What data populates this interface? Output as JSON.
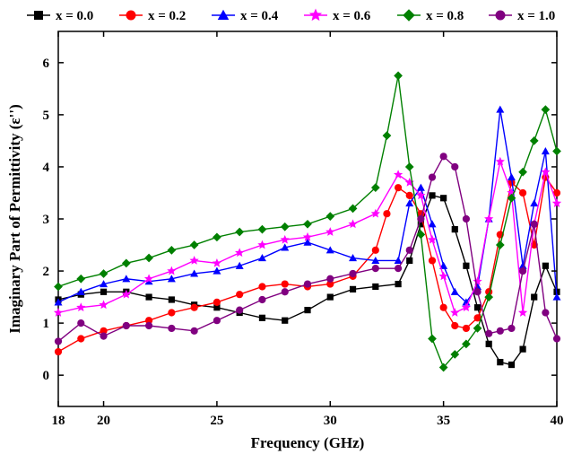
{
  "chart_data": {
    "type": "line",
    "xlabel": "Frequency (GHz)",
    "ylabel": "Imaginary Part of Permittivity (ε'')",
    "xlim": [
      18,
      40
    ],
    "ylim": [
      -0.6,
      6.6
    ],
    "xticks": [
      18,
      20,
      25,
      30,
      35,
      40
    ],
    "yticks": [
      0,
      1,
      2,
      3,
      4,
      5,
      6
    ],
    "legend_position": "top",
    "grid": false,
    "series": [
      {
        "name": "x = 0.0",
        "color": "#000000",
        "marker": "square",
        "points": [
          [
            18,
            1.45
          ],
          [
            19,
            1.55
          ],
          [
            20,
            1.6
          ],
          [
            21,
            1.6
          ],
          [
            22,
            1.5
          ],
          [
            23,
            1.45
          ],
          [
            24,
            1.35
          ],
          [
            25,
            1.3
          ],
          [
            26,
            1.2
          ],
          [
            27,
            1.1
          ],
          [
            28,
            1.05
          ],
          [
            29,
            1.25
          ],
          [
            30,
            1.5
          ],
          [
            31,
            1.65
          ],
          [
            32,
            1.7
          ],
          [
            33,
            1.75
          ],
          [
            33.5,
            2.2
          ],
          [
            34,
            2.9
          ],
          [
            34.5,
            3.45
          ],
          [
            35,
            3.4
          ],
          [
            35.5,
            2.8
          ],
          [
            36,
            2.1
          ],
          [
            36.5,
            1.3
          ],
          [
            37,
            0.6
          ],
          [
            37.5,
            0.25
          ],
          [
            38,
            0.2
          ],
          [
            38.5,
            0.5
          ],
          [
            39,
            1.5
          ],
          [
            39.5,
            2.1
          ],
          [
            40,
            1.6
          ]
        ]
      },
      {
        "name": "x = 0.2",
        "color": "#ff0000",
        "marker": "circle",
        "points": [
          [
            18,
            0.45
          ],
          [
            19,
            0.7
          ],
          [
            20,
            0.85
          ],
          [
            21,
            0.95
          ],
          [
            22,
            1.05
          ],
          [
            23,
            1.2
          ],
          [
            24,
            1.3
          ],
          [
            25,
            1.4
          ],
          [
            26,
            1.55
          ],
          [
            27,
            1.7
          ],
          [
            28,
            1.75
          ],
          [
            29,
            1.7
          ],
          [
            30,
            1.75
          ],
          [
            31,
            1.9
          ],
          [
            32,
            2.4
          ],
          [
            32.5,
            3.1
          ],
          [
            33,
            3.6
          ],
          [
            33.5,
            3.45
          ],
          [
            34,
            3.1
          ],
          [
            34.5,
            2.2
          ],
          [
            35,
            1.3
          ],
          [
            35.5,
            0.95
          ],
          [
            36,
            0.9
          ],
          [
            36.5,
            1.1
          ],
          [
            37,
            1.6
          ],
          [
            37.5,
            2.7
          ],
          [
            38,
            3.7
          ],
          [
            38.5,
            3.5
          ],
          [
            39,
            2.5
          ],
          [
            39.5,
            3.8
          ],
          [
            40,
            3.5
          ]
        ]
      },
      {
        "name": "x = 0.4",
        "color": "#0000ff",
        "marker": "triangle",
        "points": [
          [
            18,
            1.4
          ],
          [
            19,
            1.6
          ],
          [
            20,
            1.75
          ],
          [
            21,
            1.85
          ],
          [
            22,
            1.8
          ],
          [
            23,
            1.85
          ],
          [
            24,
            1.95
          ],
          [
            25,
            2.0
          ],
          [
            26,
            2.1
          ],
          [
            27,
            2.25
          ],
          [
            28,
            2.45
          ],
          [
            29,
            2.55
          ],
          [
            30,
            2.4
          ],
          [
            31,
            2.25
          ],
          [
            32,
            2.2
          ],
          [
            33,
            2.2
          ],
          [
            33.5,
            3.3
          ],
          [
            34,
            3.6
          ],
          [
            34.5,
            2.9
          ],
          [
            35,
            2.1
          ],
          [
            35.5,
            1.6
          ],
          [
            36,
            1.4
          ],
          [
            36.5,
            1.7
          ],
          [
            37,
            3.0
          ],
          [
            37.5,
            5.1
          ],
          [
            38,
            3.8
          ],
          [
            38.5,
            2.1
          ],
          [
            39,
            3.3
          ],
          [
            39.5,
            4.3
          ],
          [
            40,
            1.5
          ]
        ]
      },
      {
        "name": "x = 0.6",
        "color": "#ff00ff",
        "marker": "star",
        "points": [
          [
            18,
            1.2
          ],
          [
            19,
            1.3
          ],
          [
            20,
            1.35
          ],
          [
            21,
            1.55
          ],
          [
            22,
            1.85
          ],
          [
            23,
            2.0
          ],
          [
            24,
            2.2
          ],
          [
            25,
            2.15
          ],
          [
            26,
            2.35
          ],
          [
            27,
            2.5
          ],
          [
            28,
            2.6
          ],
          [
            29,
            2.65
          ],
          [
            30,
            2.75
          ],
          [
            31,
            2.9
          ],
          [
            32,
            3.1
          ],
          [
            33,
            3.85
          ],
          [
            33.5,
            3.7
          ],
          [
            34,
            3.45
          ],
          [
            34.5,
            2.6
          ],
          [
            35,
            1.9
          ],
          [
            35.5,
            1.2
          ],
          [
            36,
            1.3
          ],
          [
            36.5,
            1.8
          ],
          [
            37,
            3.0
          ],
          [
            37.5,
            4.1
          ],
          [
            38,
            3.5
          ],
          [
            38.5,
            1.2
          ],
          [
            39,
            2.9
          ],
          [
            39.5,
            3.9
          ],
          [
            40,
            3.3
          ]
        ]
      },
      {
        "name": "x = 0.8",
        "color": "#008000",
        "marker": "diamond",
        "points": [
          [
            18,
            1.7
          ],
          [
            19,
            1.85
          ],
          [
            20,
            1.95
          ],
          [
            21,
            2.15
          ],
          [
            22,
            2.25
          ],
          [
            23,
            2.4
          ],
          [
            24,
            2.5
          ],
          [
            25,
            2.65
          ],
          [
            26,
            2.75
          ],
          [
            27,
            2.8
          ],
          [
            28,
            2.85
          ],
          [
            29,
            2.9
          ],
          [
            30,
            3.05
          ],
          [
            31,
            3.2
          ],
          [
            32,
            3.6
          ],
          [
            32.5,
            4.6
          ],
          [
            33,
            5.75
          ],
          [
            33.5,
            4.0
          ],
          [
            34,
            2.7
          ],
          [
            34.5,
            0.7
          ],
          [
            35,
            0.15
          ],
          [
            35.5,
            0.4
          ],
          [
            36,
            0.6
          ],
          [
            36.5,
            0.9
          ],
          [
            37,
            1.5
          ],
          [
            37.5,
            2.5
          ],
          [
            38,
            3.4
          ],
          [
            38.5,
            3.9
          ],
          [
            39,
            4.5
          ],
          [
            39.5,
            5.1
          ],
          [
            40,
            4.3
          ]
        ]
      },
      {
        "name": "x = 1.0",
        "color": "#800080",
        "marker": "circle",
        "points": [
          [
            18,
            0.65
          ],
          [
            19,
            1.0
          ],
          [
            20,
            0.75
          ],
          [
            21,
            0.95
          ],
          [
            22,
            0.95
          ],
          [
            23,
            0.9
          ],
          [
            24,
            0.85
          ],
          [
            25,
            1.05
          ],
          [
            26,
            1.25
          ],
          [
            27,
            1.45
          ],
          [
            28,
            1.6
          ],
          [
            29,
            1.75
          ],
          [
            30,
            1.85
          ],
          [
            31,
            1.95
          ],
          [
            32,
            2.05
          ],
          [
            33,
            2.05
          ],
          [
            33.5,
            2.4
          ],
          [
            34,
            3.0
          ],
          [
            34.5,
            3.8
          ],
          [
            35,
            4.2
          ],
          [
            35.5,
            4.0
          ],
          [
            36,
            3.0
          ],
          [
            36.5,
            1.6
          ],
          [
            37,
            0.8
          ],
          [
            37.5,
            0.85
          ],
          [
            38,
            0.9
          ],
          [
            38.5,
            2.0
          ],
          [
            39,
            2.9
          ],
          [
            39.5,
            1.2
          ],
          [
            40,
            0.7
          ]
        ]
      }
    ]
  }
}
